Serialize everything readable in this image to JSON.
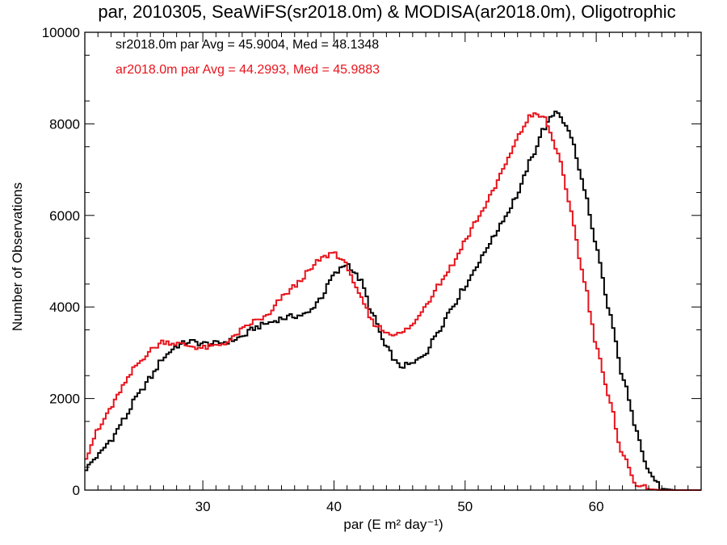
{
  "chart_data": {
    "type": "line",
    "title": "par, 2010305, SeaWiFS(sr2018.0m) & MODISA(ar2018.0m), Oligotrophic",
    "xlabel": "par (E m² day⁻¹)",
    "ylabel": "Number of Observations",
    "xlim": [
      21,
      68
    ],
    "ylim": [
      0,
      10000
    ],
    "x_ticks": [
      30,
      40,
      50,
      60
    ],
    "x_tick_labels": [
      "30",
      "40",
      "50",
      "60"
    ],
    "y_ticks": [
      0,
      2000,
      4000,
      6000,
      8000,
      10000
    ],
    "y_tick_labels": [
      "0",
      "2000",
      "4000",
      "6000",
      "8000",
      "10000"
    ],
    "step": "histogram",
    "annotations": [
      {
        "text": "sr2018.0m par Avg = 45.9004, Med = 48.1348",
        "color": "#000000"
      },
      {
        "text": "ar2018.0m par Avg = 44.2993, Med = 45.9883",
        "color": "#e8141c"
      }
    ],
    "series": [
      {
        "color": "#000000",
        "x": [
          21,
          22,
          23,
          24,
          25,
          26,
          27,
          28,
          29,
          30,
          31,
          32,
          33,
          34,
          35,
          36,
          37,
          38,
          39,
          40,
          41,
          42,
          43,
          44,
          45,
          46,
          47,
          48,
          49,
          50,
          51,
          52,
          53,
          54,
          55,
          56,
          57,
          58,
          59,
          60,
          61,
          62,
          63,
          64,
          65,
          66,
          67,
          68
        ],
        "y": [
          450,
          750,
          1100,
          1550,
          2050,
          2450,
          2900,
          3150,
          3250,
          3200,
          3200,
          3250,
          3350,
          3550,
          3650,
          3750,
          3800,
          3850,
          4200,
          4700,
          4950,
          4600,
          3800,
          3100,
          2700,
          2750,
          3000,
          3500,
          4000,
          4450,
          4950,
          5450,
          5950,
          6450,
          7200,
          7900,
          8300,
          7800,
          6700,
          5300,
          3900,
          2500,
          1400,
          400,
          30,
          0,
          0,
          0
        ]
      },
      {
        "color": "#e8141c",
        "x": [
          21,
          22,
          23,
          24,
          25,
          26,
          27,
          28,
          29,
          30,
          31,
          32,
          33,
          34,
          35,
          36,
          37,
          38,
          39,
          40,
          41,
          42,
          43,
          44,
          45,
          46,
          47,
          48,
          49,
          50,
          51,
          52,
          53,
          54,
          55,
          56,
          57,
          58,
          59,
          60,
          61,
          62,
          63,
          64,
          65,
          66,
          67,
          68
        ],
        "y": [
          700,
          1300,
          1800,
          2300,
          2750,
          3050,
          3250,
          3200,
          3150,
          3100,
          3150,
          3250,
          3500,
          3700,
          3800,
          4200,
          4450,
          4750,
          5050,
          5200,
          4900,
          4200,
          3650,
          3450,
          3400,
          3600,
          4050,
          4500,
          4900,
          5450,
          5950,
          6450,
          7050,
          7700,
          8200,
          8150,
          7450,
          6200,
          4700,
          3200,
          1950,
          800,
          150,
          20,
          0,
          0,
          0,
          0
        ]
      }
    ]
  }
}
